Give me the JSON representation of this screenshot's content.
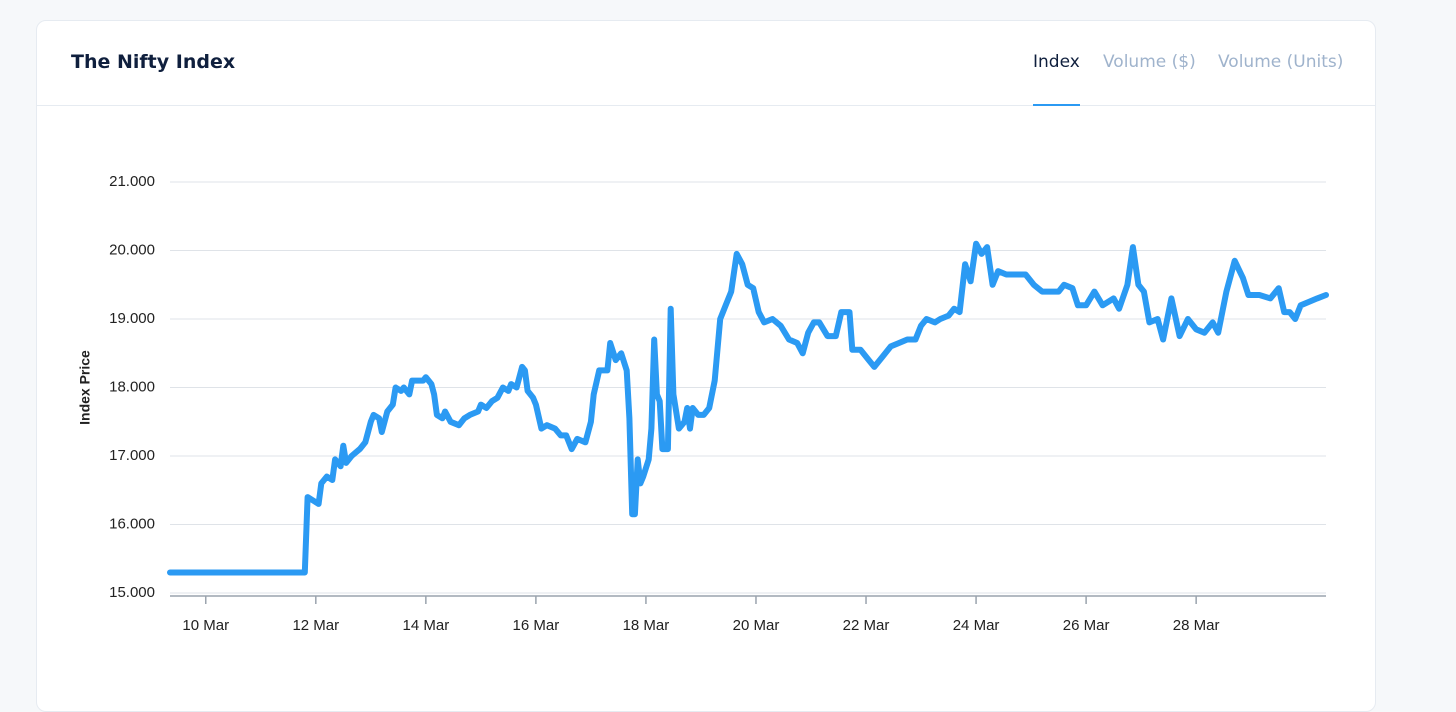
{
  "header": {
    "title": "The Nifty Index",
    "tabs": [
      "Index",
      "Volume ($)",
      "Volume (Units)"
    ]
  },
  "chart_data": {
    "type": "line",
    "ylabel": "Index Price",
    "color": "#2b9af3",
    "grid": true,
    "ylim": [
      15000,
      21000
    ],
    "yticks": [
      {
        "value": 15000,
        "label": "15.000"
      },
      {
        "value": 16000,
        "label": "16.000"
      },
      {
        "value": 17000,
        "label": "17.000"
      },
      {
        "value": 18000,
        "label": "18.000"
      },
      {
        "value": 19000,
        "label": "19.000"
      },
      {
        "value": 20000,
        "label": "20.000"
      },
      {
        "value": 21000,
        "label": "21.000"
      }
    ],
    "xlim": [
      9.35,
      30.36
    ],
    "xticks": [
      {
        "value": 10,
        "label": "10 Mar"
      },
      {
        "value": 12,
        "label": "12 Mar"
      },
      {
        "value": 14,
        "label": "14 Mar"
      },
      {
        "value": 16,
        "label": "16 Mar"
      },
      {
        "value": 18,
        "label": "18 Mar"
      },
      {
        "value": 20,
        "label": "20 Mar"
      },
      {
        "value": 22,
        "label": "22 Mar"
      },
      {
        "value": 24,
        "label": "24 Mar"
      },
      {
        "value": 26,
        "label": "26 Mar"
      },
      {
        "value": 28,
        "label": "28 Mar"
      }
    ],
    "x": [
      9.35,
      11.8,
      11.85,
      11.95,
      12.05,
      12.1,
      12.2,
      12.3,
      12.35,
      12.45,
      12.5,
      12.55,
      12.65,
      12.8,
      12.9,
      13.0,
      13.05,
      13.15,
      13.2,
      13.3,
      13.4,
      13.45,
      13.55,
      13.6,
      13.7,
      13.75,
      13.85,
      13.95,
      14.0,
      14.1,
      14.15,
      14.2,
      14.3,
      14.35,
      14.45,
      14.6,
      14.7,
      14.8,
      14.95,
      15.0,
      15.1,
      15.2,
      15.3,
      15.4,
      15.5,
      15.55,
      15.65,
      15.75,
      15.8,
      15.85,
      15.95,
      16.0,
      16.1,
      16.2,
      16.35,
      16.45,
      16.55,
      16.65,
      16.75,
      16.9,
      17.0,
      17.05,
      17.15,
      17.3,
      17.35,
      17.45,
      17.55,
      17.65,
      17.7,
      17.75,
      17.8,
      17.85,
      17.9,
      17.95,
      18.05,
      18.1,
      18.15,
      18.2,
      18.25,
      18.3,
      18.35,
      18.4,
      18.45,
      18.5,
      18.6,
      18.7,
      18.75,
      18.8,
      18.85,
      18.95,
      19.05,
      19.15,
      19.25,
      19.35,
      19.45,
      19.55,
      19.65,
      19.75,
      19.85,
      19.95,
      20.05,
      20.15,
      20.3,
      20.45,
      20.6,
      20.75,
      20.85,
      20.95,
      21.05,
      21.15,
      21.3,
      21.45,
      21.55,
      21.7,
      21.75,
      21.9,
      22.05,
      22.15,
      22.3,
      22.45,
      22.6,
      22.75,
      22.9,
      23.0,
      23.1,
      23.25,
      23.35,
      23.5,
      23.6,
      23.7,
      23.8,
      23.9,
      24.0,
      24.1,
      24.2,
      24.3,
      24.4,
      24.55,
      24.65,
      24.75,
      24.9,
      25.05,
      25.2,
      25.35,
      25.5,
      25.6,
      25.75,
      25.85,
      26.0,
      26.15,
      26.3,
      26.5,
      26.6,
      26.75,
      26.85,
      26.95,
      27.05,
      27.15,
      27.3,
      27.4,
      27.55,
      27.7,
      27.85,
      28.0,
      28.15,
      28.3,
      28.4,
      28.55,
      28.7,
      28.85,
      28.95,
      29.15,
      29.35,
      29.5,
      29.6,
      29.7,
      29.8,
      29.9,
      30.05,
      30.2,
      30.36
    ],
    "values": [
      15300,
      15300,
      16400,
      16350,
      16300,
      16600,
      16700,
      16650,
      16950,
      16850,
      17150,
      16900,
      17000,
      17100,
      17200,
      17500,
      17600,
      17550,
      17350,
      17650,
      17750,
      18000,
      17950,
      18000,
      17900,
      18100,
      18100,
      18100,
      18150,
      18050,
      17900,
      17600,
      17550,
      17650,
      17500,
      17450,
      17550,
      17600,
      17650,
      17750,
      17700,
      17800,
      17850,
      18000,
      17950,
      18050,
      18000,
      18300,
      18250,
      17950,
      17850,
      17750,
      17400,
      17450,
      17400,
      17300,
      17300,
      17100,
      17250,
      17200,
      17500,
      17900,
      18250,
      18250,
      18650,
      18400,
      18500,
      18250,
      17550,
      16150,
      16150,
      16950,
      16600,
      16700,
      16950,
      17400,
      18700,
      17900,
      17800,
      17100,
      17100,
      17100,
      19150,
      17900,
      17400,
      17500,
      17700,
      17400,
      17700,
      17600,
      17600,
      17700,
      18100,
      19000,
      19200,
      19400,
      19950,
      19800,
      19500,
      19450,
      19100,
      18950,
      19000,
      18900,
      18700,
      18650,
      18500,
      18800,
      18950,
      18950,
      18750,
      18750,
      19100,
      19100,
      18550,
      18550,
      18400,
      18300,
      18450,
      18600,
      18650,
      18700,
      18700,
      18900,
      19000,
      18950,
      19000,
      19050,
      19150,
      19100,
      19800,
      19550,
      20100,
      19950,
      20050,
      19500,
      19700,
      19650,
      19650,
      19650,
      19650,
      19500,
      19400,
      19400,
      19400,
      19500,
      19450,
      19200,
      19200,
      19400,
      19200,
      19300,
      19150,
      19500,
      20050,
      19500,
      19400,
      18950,
      19000,
      18700,
      19300,
      18750,
      19000,
      18850,
      18800,
      18950,
      18800,
      19400,
      19850,
      19600,
      19350,
      19350,
      19300,
      19450,
      19100,
      19100,
      19000,
      19200,
      19250,
      19300,
      19350
    ]
  }
}
